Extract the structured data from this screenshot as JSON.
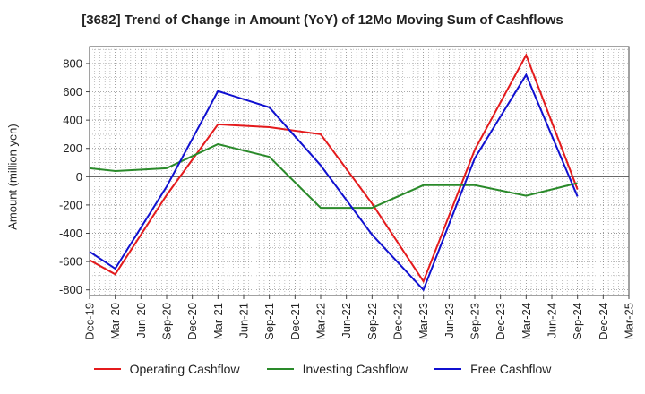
{
  "chart_data": {
    "type": "line",
    "title": "[3682]  Trend of Change in Amount (YoY) of 12Mo Moving Sum of Cashflows",
    "xlabel": "",
    "ylabel": "Amount (million yen)",
    "ylim": [
      -840,
      920
    ],
    "yticks": [
      800,
      600,
      400,
      200,
      0,
      -200,
      -400,
      -600,
      -800
    ],
    "categories": [
      "Dec-19",
      "Mar-20",
      "Jun-20",
      "Sep-20",
      "Dec-20",
      "Mar-21",
      "Jun-21",
      "Sep-21",
      "Dec-21",
      "Mar-22",
      "Jun-22",
      "Sep-22",
      "Dec-22",
      "Mar-23",
      "Jun-23",
      "Sep-23",
      "Dec-23",
      "Mar-24",
      "Jun-24",
      "Sep-24",
      "Dec-24",
      "Mar-25"
    ],
    "series": [
      {
        "name": "Operating Cashflow",
        "color": "#e41a1c",
        "values": [
          -590,
          -690,
          null,
          -130,
          null,
          370,
          null,
          350,
          null,
          300,
          null,
          -190,
          null,
          -740,
          null,
          190,
          null,
          860,
          null,
          -90,
          null,
          null
        ]
      },
      {
        "name": "Investing Cashflow",
        "color": "#2a8a2a",
        "values": [
          60,
          40,
          null,
          60,
          null,
          230,
          null,
          140,
          null,
          -220,
          null,
          -220,
          null,
          -60,
          null,
          -60,
          null,
          -135,
          null,
          -45,
          null,
          null
        ]
      },
      {
        "name": "Free Cashflow",
        "color": "#1010d0",
        "values": [
          -530,
          -650,
          null,
          -70,
          null,
          605,
          null,
          490,
          null,
          80,
          null,
          -410,
          null,
          -800,
          null,
          130,
          null,
          720,
          null,
          -140,
          null,
          null
        ]
      }
    ],
    "legend_position": "bottom",
    "grid": true
  }
}
